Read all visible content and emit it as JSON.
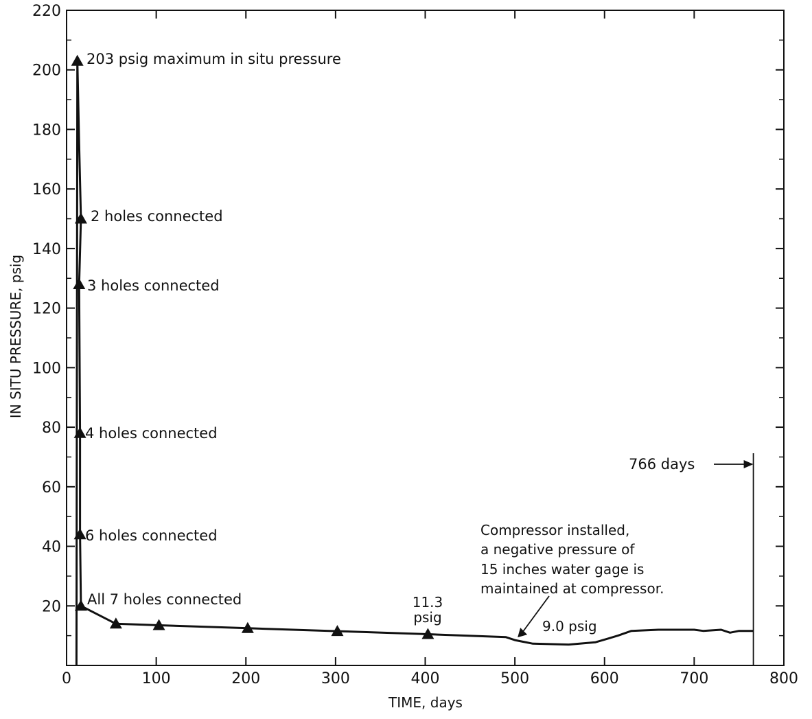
{
  "chart_data": {
    "type": "line",
    "title": "",
    "xlabel": "TIME, days",
    "ylabel": "IN SITU PRESSURE, psig",
    "xlim": [
      0,
      800
    ],
    "ylim": [
      0,
      220
    ],
    "x_ticks": [
      0,
      100,
      200,
      300,
      400,
      500,
      600,
      700,
      800
    ],
    "y_ticks": [
      20,
      40,
      60,
      80,
      100,
      120,
      140,
      160,
      180,
      200,
      220
    ],
    "grid": false,
    "series": [
      {
        "values": [
          [
            11,
            0
          ],
          [
            12,
            203
          ],
          [
            14,
            175
          ],
          [
            16,
            150
          ],
          [
            14,
            128
          ],
          [
            15,
            78
          ],
          [
            15,
            44
          ],
          [
            16,
            20
          ],
          [
            55,
            14
          ],
          [
            103,
            13.5
          ],
          [
            202,
            12.5
          ],
          [
            302,
            11.5
          ],
          [
            403,
            10.5
          ],
          [
            490,
            9.5
          ],
          [
            500,
            8.5
          ],
          [
            520,
            7.3
          ],
          [
            560,
            7
          ],
          [
            590,
            7.8
          ],
          [
            615,
            10
          ],
          [
            630,
            11.6
          ],
          [
            660,
            12
          ],
          [
            700,
            12
          ],
          [
            710,
            11.6
          ],
          [
            730,
            12
          ],
          [
            740,
            11
          ],
          [
            750,
            11.6
          ],
          [
            766,
            11.6
          ]
        ]
      }
    ],
    "markers": [
      [
        12,
        203
      ],
      [
        16,
        150
      ],
      [
        14,
        128
      ],
      [
        15,
        78
      ],
      [
        15,
        44
      ],
      [
        16,
        20
      ],
      [
        55,
        14
      ],
      [
        103,
        13.5
      ],
      [
        202,
        12.5
      ],
      [
        302,
        11.5
      ],
      [
        403,
        10.5
      ]
    ],
    "end_marker_x": 766,
    "annotations": {
      "max_pressure": "203 psig maximum in situ pressure",
      "holes_2": "2 holes connected",
      "holes_3": "3 holes connected",
      "holes_4": "4 holes connected",
      "holes_6": "6 holes connected",
      "holes_all": "All 7 holes connected",
      "value_11_3_line1": "11.3",
      "value_11_3_line2": "psig",
      "value_9_0": "9.0 psig",
      "compressor_line1": "Compressor installed,",
      "compressor_line2": "a negative pressure of",
      "compressor_line3": "15 inches water gage is",
      "compressor_line4": "maintained at compressor.",
      "days_766": "766 days"
    }
  }
}
